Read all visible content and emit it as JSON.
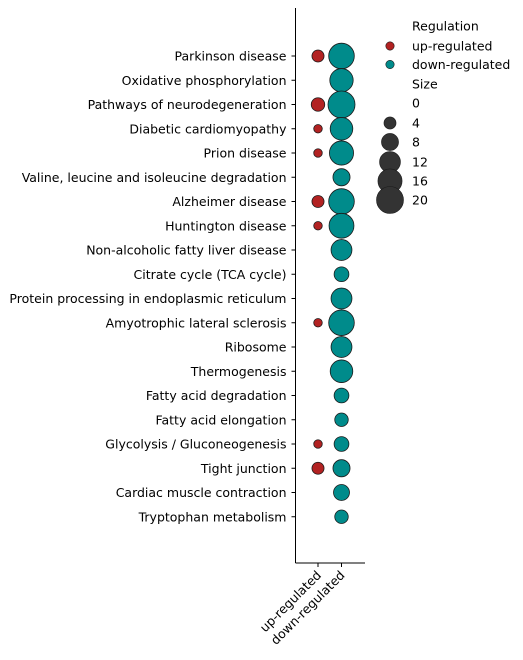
{
  "chart_data": {
    "type": "scatter",
    "title": "",
    "xlabel": "",
    "ylabel": "",
    "x_categories": [
      "up-regulated",
      "down-regulated"
    ],
    "y_categories": [
      "Parkinson disease",
      "Oxidative phosphorylation",
      "Pathways of neurodegeneration",
      "Diabetic cardiomyopathy",
      "Prion disease",
      "Valine, leucine and isoleucine degradation",
      "Alzheimer disease",
      "Huntington disease",
      "Non-alcoholic fatty liver disease",
      "Citrate cycle (TCA cycle)",
      "Protein processing in endoplasmic reticulum",
      "Amyotrophic lateral sclerosis",
      "Ribosome",
      "Thermogenesis",
      "Fatty acid degradation",
      "Fatty acid elongation",
      "Glycolysis / Gluconeogenesis",
      "Tight junction",
      "Cardiac muscle contraction",
      "Tryptophan metabolism"
    ],
    "series": [
      {
        "name": "up-regulated",
        "color": "#b22222",
        "points": [
          {
            "y": "Parkinson disease",
            "size": 4
          },
          {
            "y": "Pathways of neurodegeneration",
            "size": 5
          },
          {
            "y": "Diabetic cardiomyopathy",
            "size": 2
          },
          {
            "y": "Prion disease",
            "size": 2
          },
          {
            "y": "Alzheimer disease",
            "size": 4
          },
          {
            "y": "Huntington disease",
            "size": 2
          },
          {
            "y": "Amyotrophic lateral sclerosis",
            "size": 2
          },
          {
            "y": "Glycolysis / Gluconeogenesis",
            "size": 2
          },
          {
            "y": "Tight junction",
            "size": 4
          }
        ]
      },
      {
        "name": "down-regulated",
        "color": "#008b8b",
        "points": [
          {
            "y": "Parkinson disease",
            "size": 18
          },
          {
            "y": "Oxidative phosphorylation",
            "size": 15
          },
          {
            "y": "Pathways of neurodegeneration",
            "size": 20
          },
          {
            "y": "Diabetic cardiomyopathy",
            "size": 14
          },
          {
            "y": "Prion disease",
            "size": 16
          },
          {
            "y": "Valine, leucine and isoleucine degradation",
            "size": 8
          },
          {
            "y": "Alzheimer disease",
            "size": 18
          },
          {
            "y": "Huntington disease",
            "size": 17
          },
          {
            "y": "Non-alcoholic fatty liver disease",
            "size": 12
          },
          {
            "y": "Citrate cycle (TCA cycle)",
            "size": 6
          },
          {
            "y": "Protein processing in endoplasmic reticulum",
            "size": 12
          },
          {
            "y": "Amyotrophic lateral sclerosis",
            "size": 18
          },
          {
            "y": "Ribosome",
            "size": 12
          },
          {
            "y": "Thermogenesis",
            "size": 14
          },
          {
            "y": "Fatty acid degradation",
            "size": 6
          },
          {
            "y": "Fatty acid elongation",
            "size": 5
          },
          {
            "y": "Glycolysis / Gluconeogenesis",
            "size": 6
          },
          {
            "y": "Tight junction",
            "size": 8
          },
          {
            "y": "Cardiac muscle contraction",
            "size": 7
          },
          {
            "y": "Tryptophan metabolism",
            "size": 5
          }
        ]
      }
    ],
    "legend": {
      "placement": "top-right",
      "hue_title": "Regulation",
      "hue_entries": [
        {
          "label": "up-regulated",
          "color": "#b22222"
        },
        {
          "label": "down-regulated",
          "color": "#008b8b"
        }
      ],
      "size_title": "Size",
      "size_entries": [
        0,
        4,
        8,
        12,
        16,
        20
      ]
    },
    "size_legend_color": "#333333",
    "grid": false
  }
}
